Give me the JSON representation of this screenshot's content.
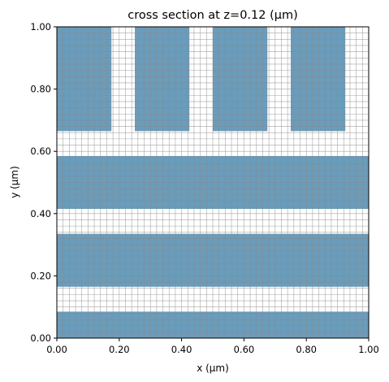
{
  "chart_data": {
    "type": "heatmap",
    "title": "cross section at z=0.12 (µm)",
    "xlabel": "x (µm)",
    "ylabel": "y (µm)",
    "xlim": [
      0.0,
      1.0
    ],
    "ylim": [
      0.0,
      1.0
    ],
    "grid": true,
    "grid_step": 0.02,
    "xticks": [
      "0.00",
      "0.20",
      "0.40",
      "0.60",
      "0.80",
      "1.00"
    ],
    "yticks": [
      "0.00",
      "0.20",
      "0.40",
      "0.60",
      "0.80",
      "1.00"
    ],
    "fill_color": "#6a9cbb",
    "grid_color": "#8a8a8a",
    "regions": [
      {
        "shape": "rect",
        "x": [
          0.0,
          1.0
        ],
        "y": [
          0.0,
          0.085
        ]
      },
      {
        "shape": "rect",
        "x": [
          0.0,
          1.0
        ],
        "y": [
          0.165,
          0.335
        ]
      },
      {
        "shape": "rect",
        "x": [
          0.0,
          1.0
        ],
        "y": [
          0.415,
          0.585
        ]
      },
      {
        "shape": "rect",
        "x": [
          0.0,
          0.175
        ],
        "y": [
          0.665,
          1.0
        ]
      },
      {
        "shape": "rect",
        "x": [
          0.25,
          0.425
        ],
        "y": [
          0.665,
          1.0
        ]
      },
      {
        "shape": "rect",
        "x": [
          0.5,
          0.675
        ],
        "y": [
          0.665,
          1.0
        ]
      },
      {
        "shape": "rect",
        "x": [
          0.75,
          0.925
        ],
        "y": [
          0.665,
          1.0
        ]
      }
    ]
  }
}
